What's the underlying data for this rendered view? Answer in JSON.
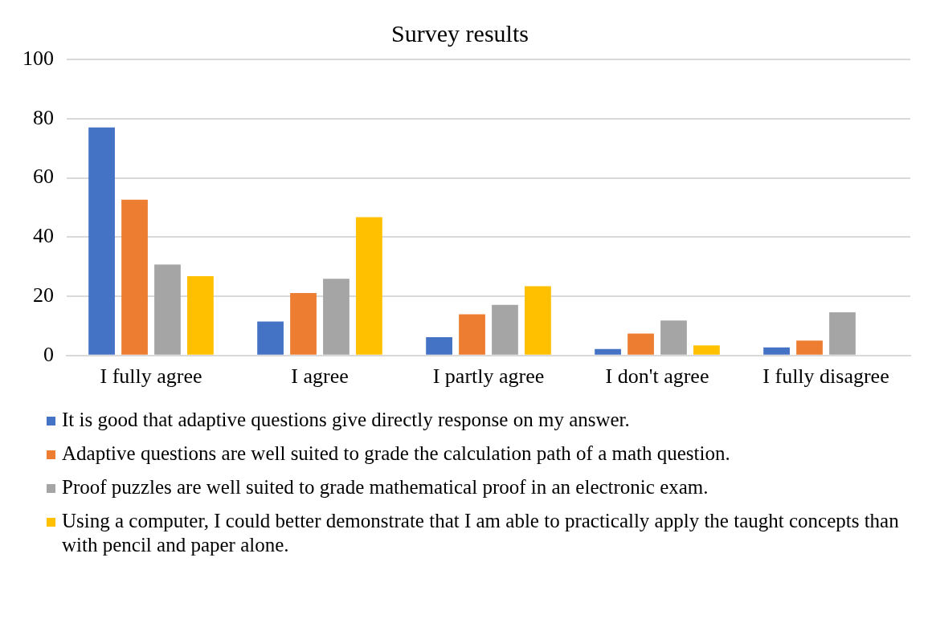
{
  "chart_data": {
    "type": "bar",
    "title": "Survey results",
    "categories": [
      "I fully agree",
      "I agree",
      "I partly agree",
      "I don't agree",
      "I fully disagree"
    ],
    "series": [
      {
        "name": "It is good that adaptive questions give directly response on my answer.",
        "color": "#4472c4",
        "values": [
          77,
          11.5,
          6.2,
          2.2,
          2.7
        ]
      },
      {
        "name": "Adaptive questions are well suited to grade the calculation path of a math question.",
        "color": "#ed7d31",
        "values": [
          52.6,
          21.1,
          13.9,
          7.4,
          5
        ]
      },
      {
        "name": "Proof puzzles are well suited to grade mathematical proof in an electronic exam.",
        "color": "#a5a5a5",
        "values": [
          30.7,
          25.9,
          17.1,
          11.8,
          14.6
        ]
      },
      {
        "name": "Using a computer, I could better demonstrate that I am able to practically apply the taught concepts than with pencil and paper alone.",
        "color": "#ffc000",
        "values": [
          26.8,
          46.7,
          23.4,
          3.4,
          0
        ]
      }
    ],
    "ylim": [
      0,
      100
    ],
    "yticks": [
      0,
      20,
      40,
      60,
      80,
      100
    ],
    "grid": "y",
    "legend": "bottom"
  }
}
